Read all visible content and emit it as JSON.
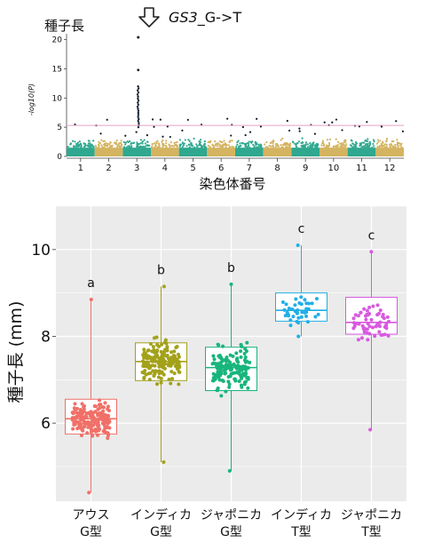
{
  "manhattan": {
    "title": "種子長",
    "annotation_gene": "GS3",
    "annotation_suffix": "_G->T",
    "arrow_icon": "down-arrow-icon",
    "ylabel": "-log10(P)",
    "xlabel": "染色体番号",
    "y_ticks": [
      "0",
      "5",
      "10",
      "15",
      "20"
    ],
    "chromosomes": [
      "1",
      "2",
      "3",
      "4",
      "5",
      "6",
      "7",
      "8",
      "9",
      "10",
      "11",
      "12"
    ],
    "threshold_color": "#e7a0c8",
    "colors": {
      "odd": "#2fa88f",
      "even": "#d4b461",
      "peak": "#0d1b2a"
    }
  },
  "chart_data": {
    "type": "box",
    "ylabel": "種子長 (mm)",
    "ylim": [
      4.2,
      11.0
    ],
    "y_ticks": [
      "6",
      "8",
      "10"
    ],
    "categories": [
      {
        "line1": "アウス",
        "line2": "G型",
        "letter": "a",
        "color": "#f07068",
        "q1": 5.75,
        "median": 6.1,
        "q3": 6.55,
        "whisker_low": 4.4,
        "whisker_high": 8.85,
        "n": 180
      },
      {
        "line1": "インディカ",
        "line2": "G型",
        "letter": "b",
        "color": "#a3a11a",
        "q1": 6.98,
        "median": 7.42,
        "q3": 7.85,
        "whisker_low": 5.1,
        "whisker_high": 9.15,
        "n": 190
      },
      {
        "line1": "ジャポニカ",
        "line2": "G型",
        "letter": "b",
        "color": "#18b57d",
        "q1": 6.75,
        "median": 7.28,
        "q3": 7.75,
        "whisker_low": 4.9,
        "whisker_high": 9.2,
        "n": 150
      },
      {
        "line1": "インディカ",
        "line2": "T型",
        "letter": "c",
        "color": "#22aee6",
        "q1": 8.35,
        "median": 8.6,
        "q3": 9.0,
        "whisker_low": 8.0,
        "whisker_high": 10.1,
        "n": 40
      },
      {
        "line1": "ジャポニカ",
        "line2": "T型",
        "letter": "c",
        "color": "#d859e0",
        "q1": 8.05,
        "median": 8.32,
        "q3": 8.9,
        "whisker_low": 5.85,
        "whisker_high": 9.95,
        "n": 60
      }
    ]
  }
}
